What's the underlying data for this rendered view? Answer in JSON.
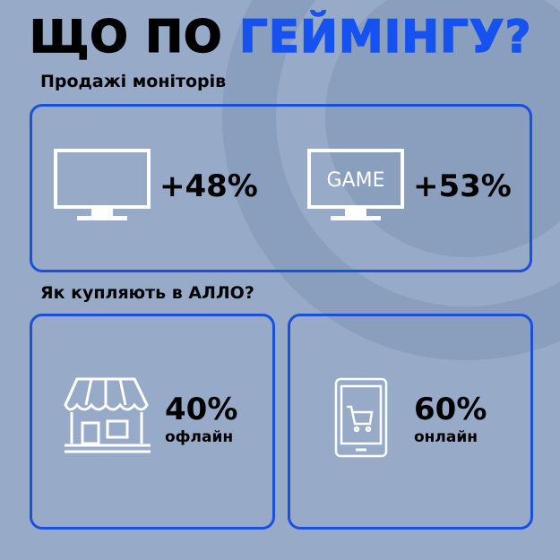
{
  "title": {
    "part1": "ЩО ПО",
    "part2": "ГЕЙМІНГУ?"
  },
  "monitor_sales": {
    "heading": "Продажі моніторів",
    "items": [
      {
        "icon": "monitor-icon",
        "value": "+48%"
      },
      {
        "icon": "game-monitor-icon",
        "screen_label": "GAME",
        "value": "+53%"
      }
    ]
  },
  "purchase_channels": {
    "heading": "Як купляють в АЛЛО?",
    "items": [
      {
        "icon": "store-icon",
        "value": "40%",
        "label": "офлайн"
      },
      {
        "icon": "smartphone-cart-icon",
        "value": "60%",
        "label": "онлайн"
      }
    ]
  },
  "colors": {
    "background": "#97abc8",
    "accent": "#1652f0",
    "border": "#1a4fe0",
    "circle": "#8a9fbd"
  }
}
